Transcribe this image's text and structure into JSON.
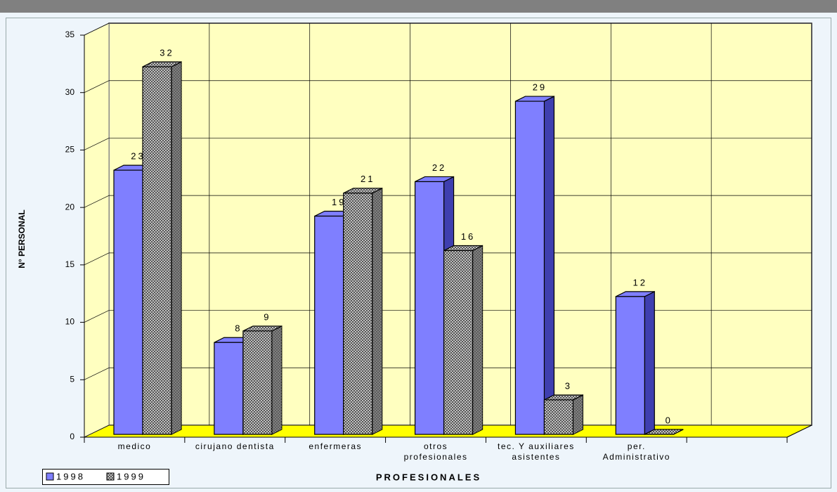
{
  "chart_data": {
    "type": "bar3d",
    "y_label": "N° PERSONAL",
    "x_label": "PROFESIONALES",
    "categories": [
      "medico",
      "cirujano dentista",
      "enfermeras",
      "otros\nprofesionales",
      "tec. Y auxiliares\nasistentes",
      "per.\nAdministrativo",
      null
    ],
    "series": [
      {
        "name": "1998",
        "color": "#7f7fff",
        "side_color": "#3f3fb0",
        "values": [
          23,
          8,
          19,
          22,
          29,
          12,
          null
        ]
      },
      {
        "name": "1999",
        "color": "#b8b8b8",
        "side_color": "#606060",
        "pattern": "crosshatch",
        "values": [
          32,
          9,
          21,
          16,
          3,
          0,
          null
        ]
      }
    ],
    "ylim": [
      0,
      35
    ],
    "yticks": [
      0,
      5,
      10,
      15,
      20,
      25,
      30,
      35
    ],
    "grid": true,
    "legend": "bottom-left"
  }
}
